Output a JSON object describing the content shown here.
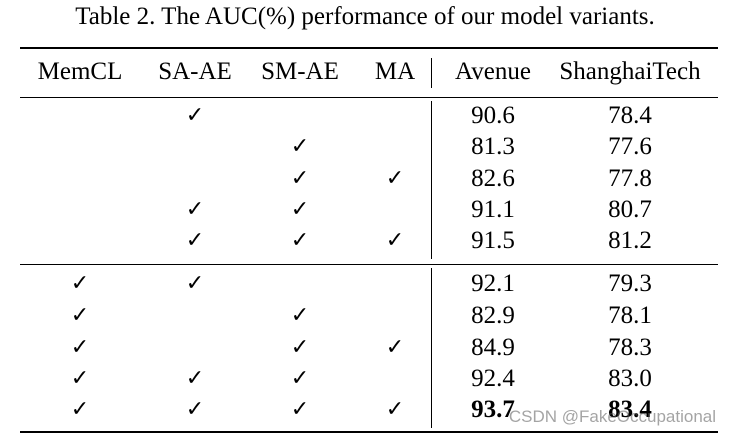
{
  "caption": "Table 2. The AUC(%) performance of our model variants.",
  "check_glyph": "✓",
  "headers": [
    "MemCL",
    "SA-AE",
    "SM-AE",
    "MA",
    "Avenue",
    "ShanghaiTech"
  ],
  "group1": [
    {
      "memcl": "",
      "saae": "✓",
      "smae": "",
      "ma": "",
      "avenue": "90.6",
      "shanghaitech": "78.4"
    },
    {
      "memcl": "",
      "saae": "",
      "smae": "✓",
      "ma": "",
      "avenue": "81.3",
      "shanghaitech": "77.6"
    },
    {
      "memcl": "",
      "saae": "",
      "smae": "✓",
      "ma": "✓",
      "avenue": "82.6",
      "shanghaitech": "77.8"
    },
    {
      "memcl": "",
      "saae": "✓",
      "smae": "✓",
      "ma": "",
      "avenue": "91.1",
      "shanghaitech": "80.7"
    },
    {
      "memcl": "",
      "saae": "✓",
      "smae": "✓",
      "ma": "✓",
      "avenue": "91.5",
      "shanghaitech": "81.2"
    }
  ],
  "group2": [
    {
      "memcl": "✓",
      "saae": "✓",
      "smae": "",
      "ma": "",
      "avenue": "92.1",
      "shanghaitech": "79.3"
    },
    {
      "memcl": "✓",
      "saae": "",
      "smae": "✓",
      "ma": "",
      "avenue": "82.9",
      "shanghaitech": "78.1"
    },
    {
      "memcl": "✓",
      "saae": "",
      "smae": "✓",
      "ma": "✓",
      "avenue": "84.9",
      "shanghaitech": "78.3"
    },
    {
      "memcl": "✓",
      "saae": "✓",
      "smae": "✓",
      "ma": "",
      "avenue": "92.4",
      "shanghaitech": "83.0"
    },
    {
      "memcl": "✓",
      "saae": "✓",
      "smae": "✓",
      "ma": "✓",
      "avenue": "93.7",
      "shanghaitech": "83.4"
    }
  ],
  "watermark": "CSDN @FakeOccupational"
}
